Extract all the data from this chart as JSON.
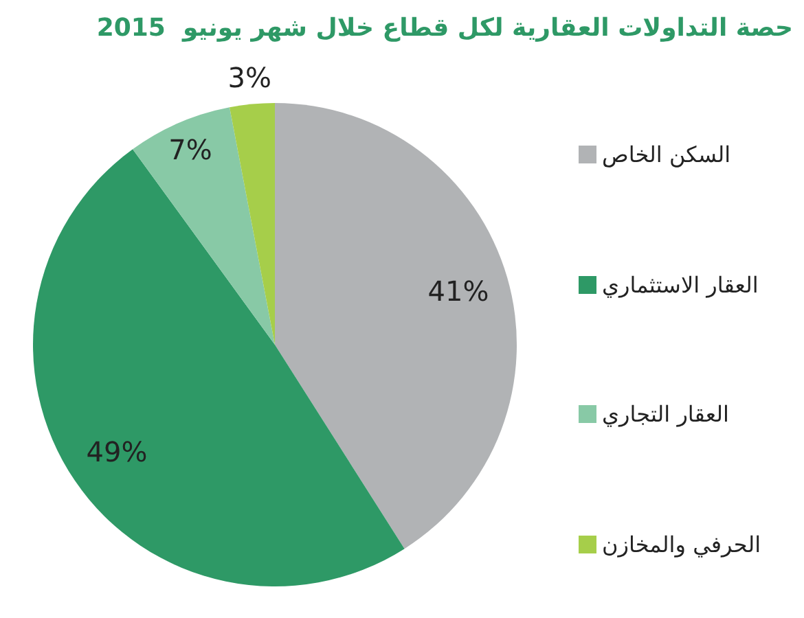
{
  "chart_data": {
    "type": "pie",
    "title": "حصة التداولات العقارية لكل قطاع خلال شهر يونيو  2015",
    "categories": [
      "السكن الخاص",
      "العقار الاستثماري",
      "العقار التجاري",
      "الحرفي والمخازن"
    ],
    "values": [
      41,
      49,
      7,
      3
    ],
    "colors": [
      "#b1b3b5",
      "#2e9966",
      "#88c9a6",
      "#a6ce4a"
    ],
    "value_labels": [
      "41%",
      "49%",
      "7%",
      "3%"
    ],
    "legend": "right"
  }
}
